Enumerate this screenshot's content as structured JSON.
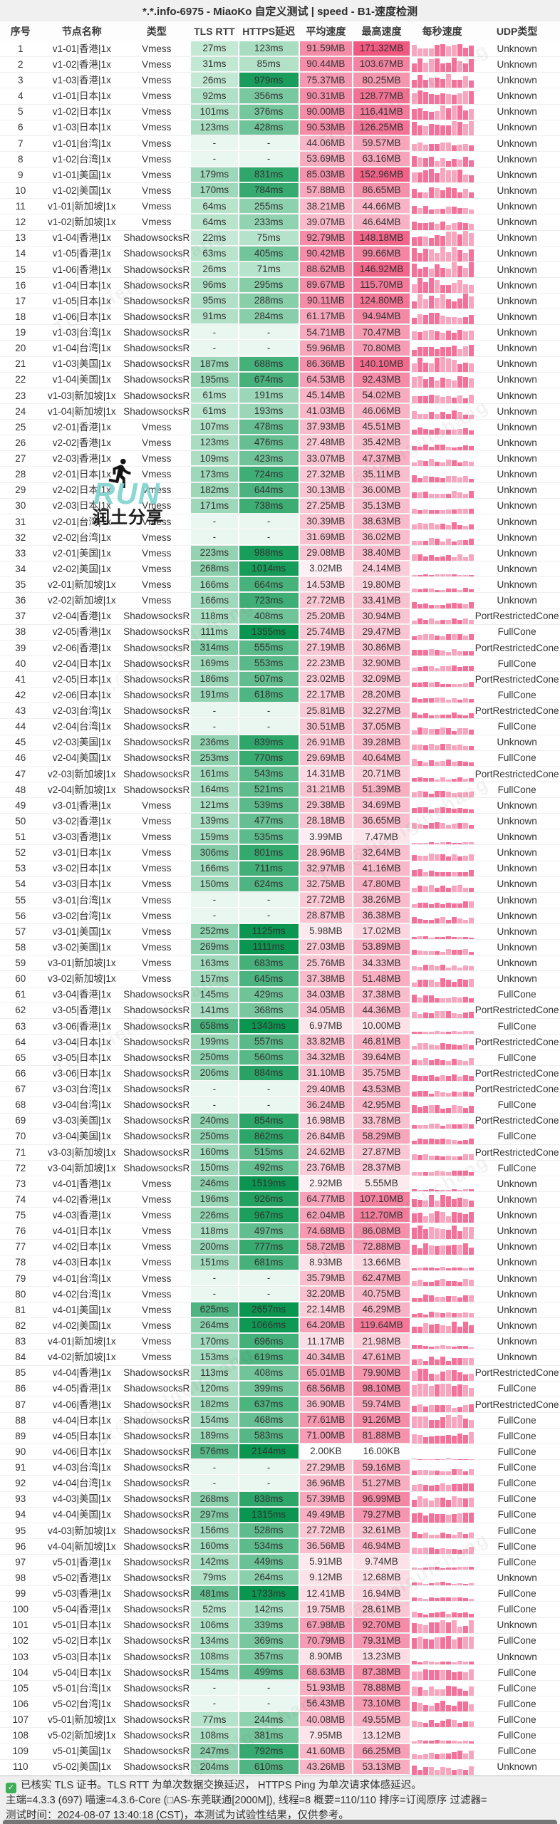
{
  "title": "*.*.info-6975 - MiaoKo 自定义测试 | speed - B1-速度检测",
  "columns": [
    "序号",
    "节点名称",
    "类型",
    "TLS RTT",
    "HTTPS延迟",
    "平均速度",
    "最高速度",
    "每秒速度",
    "UDP类型"
  ],
  "rows": [
    [
      1,
      "v1-01|香港|1x",
      "Vmess",
      "27ms",
      "123ms",
      "91.59MB",
      "171.32MB",
      "Unknown"
    ],
    [
      2,
      "v1-02|香港|1x",
      "Vmess",
      "31ms",
      "85ms",
      "90.44MB",
      "103.67MB",
      "Unknown"
    ],
    [
      3,
      "v1-03|香港|1x",
      "Vmess",
      "26ms",
      "979ms",
      "75.37MB",
      "80.25MB",
      "Unknown"
    ],
    [
      4,
      "v1-01|日本|1x",
      "Vmess",
      "92ms",
      "356ms",
      "90.31MB",
      "128.77MB",
      "Unknown"
    ],
    [
      5,
      "v1-02|日本|1x",
      "Vmess",
      "101ms",
      "376ms",
      "90.00MB",
      "116.41MB",
      "Unknown"
    ],
    [
      6,
      "v1-03|日本|1x",
      "Vmess",
      "123ms",
      "428ms",
      "90.53MB",
      "126.25MB",
      "Unknown"
    ],
    [
      7,
      "v1-01|台湾|1x",
      "Vmess",
      "-",
      "-",
      "44.06MB",
      "59.57MB",
      "Unknown"
    ],
    [
      8,
      "v1-02|台湾|1x",
      "Vmess",
      "-",
      "-",
      "53.69MB",
      "63.16MB",
      "Unknown"
    ],
    [
      9,
      "v1-01|美国|1x",
      "Vmess",
      "179ms",
      "831ms",
      "85.03MB",
      "152.96MB",
      "Unknown"
    ],
    [
      10,
      "v1-02|美国|1x",
      "Vmess",
      "170ms",
      "784ms",
      "57.88MB",
      "86.65MB",
      "Unknown"
    ],
    [
      11,
      "v1-01|新加坡|1x",
      "Vmess",
      "64ms",
      "255ms",
      "38.21MB",
      "44.66MB",
      "Unknown"
    ],
    [
      12,
      "v1-02|新加坡|1x",
      "Vmess",
      "64ms",
      "233ms",
      "39.07MB",
      "46.64MB",
      "Unknown"
    ],
    [
      13,
      "v1-04|香港|1x",
      "ShadowsocksR",
      "22ms",
      "75ms",
      "92.79MB",
      "148.18MB",
      "Unknown"
    ],
    [
      14,
      "v1-05|香港|1x",
      "ShadowsocksR",
      "63ms",
      "405ms",
      "90.42MB",
      "99.66MB",
      "Unknown"
    ],
    [
      15,
      "v1-06|香港|1x",
      "ShadowsocksR",
      "26ms",
      "71ms",
      "88.62MB",
      "146.92MB",
      "Unknown"
    ],
    [
      16,
      "v1-04|日本|1x",
      "ShadowsocksR",
      "96ms",
      "295ms",
      "89.67MB",
      "115.70MB",
      "Unknown"
    ],
    [
      17,
      "v1-05|日本|1x",
      "ShadowsocksR",
      "95ms",
      "288ms",
      "90.11MB",
      "124.80MB",
      "Unknown"
    ],
    [
      18,
      "v1-06|日本|1x",
      "ShadowsocksR",
      "91ms",
      "284ms",
      "61.17MB",
      "94.94MB",
      "Unknown"
    ],
    [
      19,
      "v1-03|台湾|1x",
      "ShadowsocksR",
      "-",
      "-",
      "54.71MB",
      "70.47MB",
      "Unknown"
    ],
    [
      20,
      "v1-04|台湾|1x",
      "ShadowsocksR",
      "-",
      "-",
      "59.96MB",
      "70.80MB",
      "Unknown"
    ],
    [
      21,
      "v1-03|美国|1x",
      "ShadowsocksR",
      "187ms",
      "688ms",
      "86.36MB",
      "140.10MB",
      "Unknown"
    ],
    [
      22,
      "v1-04|美国|1x",
      "ShadowsocksR",
      "195ms",
      "674ms",
      "64.53MB",
      "92.43MB",
      "Unknown"
    ],
    [
      23,
      "v1-03|新加坡|1x",
      "ShadowsocksR",
      "61ms",
      "191ms",
      "45.14MB",
      "54.02MB",
      "Unknown"
    ],
    [
      24,
      "v1-04|新加坡|1x",
      "ShadowsocksR",
      "61ms",
      "193ms",
      "41.03MB",
      "46.06MB",
      "Unknown"
    ],
    [
      25,
      "v2-01|香港|1x",
      "Vmess",
      "107ms",
      "478ms",
      "37.93MB",
      "45.51MB",
      "Unknown"
    ],
    [
      26,
      "v2-02|香港|1x",
      "Vmess",
      "123ms",
      "476ms",
      "27.48MB",
      "35.42MB",
      "Unknown"
    ],
    [
      27,
      "v2-03|香港|1x",
      "Vmess",
      "109ms",
      "423ms",
      "33.07MB",
      "47.37MB",
      "Unknown"
    ],
    [
      28,
      "v2-01|日本|1x",
      "Vmess",
      "173ms",
      "724ms",
      "27.32MB",
      "35.11MB",
      "Unknown"
    ],
    [
      29,
      "v2-02|日本|1x",
      "Vmess",
      "182ms",
      "644ms",
      "30.13MB",
      "36.00MB",
      "Unknown"
    ],
    [
      30,
      "v2-03|日本|1x",
      "Vmess",
      "171ms",
      "738ms",
      "27.25MB",
      "35.13MB",
      "Unknown"
    ],
    [
      31,
      "v2-01|台湾|1x",
      "Vmess",
      "-",
      "-",
      "30.39MB",
      "38.63MB",
      "Unknown"
    ],
    [
      32,
      "v2-02|台湾|1x",
      "Vmess",
      "-",
      "-",
      "31.69MB",
      "36.02MB",
      "Unknown"
    ],
    [
      33,
      "v2-01|美国|1x",
      "Vmess",
      "223ms",
      "988ms",
      "29.08MB",
      "38.40MB",
      "Unknown"
    ],
    [
      34,
      "v2-02|美国|1x",
      "Vmess",
      "268ms",
      "1014ms",
      "3.02MB",
      "24.14MB",
      "Unknown"
    ],
    [
      35,
      "v2-01|新加坡|1x",
      "Vmess",
      "166ms",
      "664ms",
      "14.53MB",
      "19.80MB",
      "Unknown"
    ],
    [
      36,
      "v2-02|新加坡|1x",
      "Vmess",
      "166ms",
      "723ms",
      "27.72MB",
      "33.41MB",
      "Unknown"
    ],
    [
      37,
      "v2-04|香港|1x",
      "ShadowsocksR",
      "118ms",
      "408ms",
      "25.20MB",
      "30.94MB",
      "PortRestrictedCone"
    ],
    [
      38,
      "v2-05|香港|1x",
      "ShadowsocksR",
      "111ms",
      "1355ms",
      "25.74MB",
      "29.47MB",
      "FullCone"
    ],
    [
      39,
      "v2-06|香港|1x",
      "ShadowsocksR",
      "314ms",
      "555ms",
      "27.19MB",
      "30.86MB",
      "PortRestrictedCone"
    ],
    [
      40,
      "v2-04|日本|1x",
      "ShadowsocksR",
      "169ms",
      "553ms",
      "22.23MB",
      "32.90MB",
      "FullCone"
    ],
    [
      41,
      "v2-05|日本|1x",
      "ShadowsocksR",
      "186ms",
      "507ms",
      "23.02MB",
      "32.09MB",
      "PortRestrictedCone"
    ],
    [
      42,
      "v2-06|日本|1x",
      "ShadowsocksR",
      "191ms",
      "618ms",
      "22.17MB",
      "28.20MB",
      "FullCone"
    ],
    [
      43,
      "v2-03|台湾|1x",
      "ShadowsocksR",
      "-",
      "-",
      "25.81MB",
      "32.27MB",
      "PortRestrictedCone"
    ],
    [
      44,
      "v2-04|台湾|1x",
      "ShadowsocksR",
      "-",
      "-",
      "30.51MB",
      "37.05MB",
      "FullCone"
    ],
    [
      45,
      "v2-03|美国|1x",
      "ShadowsocksR",
      "236ms",
      "839ms",
      "26.91MB",
      "39.28MB",
      "Unknown"
    ],
    [
      46,
      "v2-04|美国|1x",
      "ShadowsocksR",
      "253ms",
      "770ms",
      "29.69MB",
      "40.64MB",
      "FullCone"
    ],
    [
      47,
      "v2-03|新加坡|1x",
      "ShadowsocksR",
      "161ms",
      "543ms",
      "14.31MB",
      "20.71MB",
      "PortRestrictedCone"
    ],
    [
      48,
      "v2-04|新加坡|1x",
      "ShadowsocksR",
      "164ms",
      "521ms",
      "31.21MB",
      "51.39MB",
      "FullCone"
    ],
    [
      49,
      "v3-01|香港|1x",
      "Vmess",
      "121ms",
      "539ms",
      "29.38MB",
      "34.69MB",
      "Unknown"
    ],
    [
      50,
      "v3-02|香港|1x",
      "Vmess",
      "139ms",
      "477ms",
      "28.18MB",
      "36.65MB",
      "Unknown"
    ],
    [
      51,
      "v3-03|香港|1x",
      "Vmess",
      "159ms",
      "535ms",
      "3.99MB",
      "7.47MB",
      "Unknown"
    ],
    [
      52,
      "v3-01|日本|1x",
      "Vmess",
      "306ms",
      "801ms",
      "28.96MB",
      "32.64MB",
      "Unknown"
    ],
    [
      53,
      "v3-02|日本|1x",
      "Vmess",
      "166ms",
      "711ms",
      "32.97MB",
      "41.16MB",
      "Unknown"
    ],
    [
      54,
      "v3-03|日本|1x",
      "Vmess",
      "150ms",
      "624ms",
      "32.75MB",
      "47.80MB",
      "Unknown"
    ],
    [
      55,
      "v3-01|台湾|1x",
      "Vmess",
      "-",
      "-",
      "27.72MB",
      "38.26MB",
      "Unknown"
    ],
    [
      56,
      "v3-02|台湾|1x",
      "Vmess",
      "-",
      "-",
      "28.87MB",
      "36.38MB",
      "Unknown"
    ],
    [
      57,
      "v3-01|美国|1x",
      "Vmess",
      "252ms",
      "1125ms",
      "5.98MB",
      "17.02MB",
      "Unknown"
    ],
    [
      58,
      "v3-02|美国|1x",
      "Vmess",
      "269ms",
      "1111ms",
      "27.03MB",
      "53.89MB",
      "Unknown"
    ],
    [
      59,
      "v3-01|新加坡|1x",
      "Vmess",
      "163ms",
      "683ms",
      "25.76MB",
      "34.33MB",
      "Unknown"
    ],
    [
      60,
      "v3-02|新加坡|1x",
      "Vmess",
      "157ms",
      "645ms",
      "37.38MB",
      "51.48MB",
      "Unknown"
    ],
    [
      61,
      "v3-04|香港|1x",
      "ShadowsocksR",
      "145ms",
      "429ms",
      "34.03MB",
      "37.38MB",
      "FullCone"
    ],
    [
      62,
      "v3-05|香港|1x",
      "ShadowsocksR",
      "141ms",
      "368ms",
      "34.05MB",
      "44.36MB",
      "PortRestrictedCone"
    ],
    [
      63,
      "v3-06|香港|1x",
      "ShadowsocksR",
      "658ms",
      "1343ms",
      "6.97MB",
      "10.00MB",
      "FullCone"
    ],
    [
      64,
      "v3-04|日本|1x",
      "ShadowsocksR",
      "199ms",
      "557ms",
      "33.82MB",
      "46.81MB",
      "PortRestrictedCone"
    ],
    [
      65,
      "v3-05|日本|1x",
      "ShadowsocksR",
      "250ms",
      "560ms",
      "34.32MB",
      "39.64MB",
      "FullCone"
    ],
    [
      66,
      "v3-06|日本|1x",
      "ShadowsocksR",
      "206ms",
      "884ms",
      "31.10MB",
      "35.75MB",
      "PortRestrictedCone"
    ],
    [
      67,
      "v3-03|台湾|1x",
      "ShadowsocksR",
      "-",
      "-",
      "29.40MB",
      "43.53MB",
      "PortRestrictedCone"
    ],
    [
      68,
      "v3-04|台湾|1x",
      "ShadowsocksR",
      "-",
      "-",
      "36.24MB",
      "42.95MB",
      "FullCone"
    ],
    [
      69,
      "v3-03|美国|1x",
      "ShadowsocksR",
      "240ms",
      "854ms",
      "16.98MB",
      "33.78MB",
      "PortRestrictedCone"
    ],
    [
      70,
      "v3-04|美国|1x",
      "ShadowsocksR",
      "250ms",
      "862ms",
      "26.84MB",
      "58.29MB",
      "FullCone"
    ],
    [
      71,
      "v3-03|新加坡|1x",
      "ShadowsocksR",
      "160ms",
      "515ms",
      "24.62MB",
      "27.87MB",
      "PortRestrictedCone"
    ],
    [
      72,
      "v3-04|新加坡|1x",
      "ShadowsocksR",
      "150ms",
      "492ms",
      "23.76MB",
      "28.37MB",
      "FullCone"
    ],
    [
      73,
      "v4-01|香港|1x",
      "Vmess",
      "246ms",
      "1519ms",
      "2.92MB",
      "5.55MB",
      "Unknown"
    ],
    [
      74,
      "v4-02|香港|1x",
      "Vmess",
      "196ms",
      "926ms",
      "64.77MB",
      "107.10MB",
      "Unknown"
    ],
    [
      75,
      "v4-03|香港|1x",
      "Vmess",
      "226ms",
      "967ms",
      "62.04MB",
      "112.70MB",
      "Unknown"
    ],
    [
      76,
      "v4-01|日本|1x",
      "Vmess",
      "118ms",
      "497ms",
      "74.68MB",
      "86.08MB",
      "Unknown"
    ],
    [
      77,
      "v4-02|日本|1x",
      "Vmess",
      "200ms",
      "777ms",
      "58.72MB",
      "72.88MB",
      "Unknown"
    ],
    [
      78,
      "v4-03|日本|1x",
      "Vmess",
      "151ms",
      "681ms",
      "8.93MB",
      "13.66MB",
      "Unknown"
    ],
    [
      79,
      "v4-01|台湾|1x",
      "Vmess",
      "-",
      "-",
      "35.79MB",
      "62.47MB",
      "Unknown"
    ],
    [
      80,
      "v4-02|台湾|1x",
      "Vmess",
      "-",
      "-",
      "32.20MB",
      "40.75MB",
      "Unknown"
    ],
    [
      81,
      "v4-01|美国|1x",
      "Vmess",
      "625ms",
      "2657ms",
      "22.14MB",
      "46.29MB",
      "Unknown"
    ],
    [
      82,
      "v4-02|美国|1x",
      "Vmess",
      "264ms",
      "1066ms",
      "64.20MB",
      "119.64MB",
      "Unknown"
    ],
    [
      83,
      "v4-01|新加坡|1x",
      "Vmess",
      "170ms",
      "696ms",
      "11.17MB",
      "21.98MB",
      "Unknown"
    ],
    [
      84,
      "v4-02|新加坡|1x",
      "Vmess",
      "153ms",
      "619ms",
      "40.34MB",
      "47.61MB",
      "Unknown"
    ],
    [
      85,
      "v4-04|香港|1x",
      "ShadowsocksR",
      "113ms",
      "408ms",
      "65.01MB",
      "79.90MB",
      "PortRestrictedCone"
    ],
    [
      86,
      "v4-05|香港|1x",
      "ShadowsocksR",
      "120ms",
      "399ms",
      "68.56MB",
      "98.10MB",
      "FullCone"
    ],
    [
      87,
      "v4-06|香港|1x",
      "ShadowsocksR",
      "182ms",
      "637ms",
      "36.90MB",
      "59.74MB",
      "PortRestrictedCone"
    ],
    [
      88,
      "v4-04|日本|1x",
      "ShadowsocksR",
      "154ms",
      "468ms",
      "77.61MB",
      "91.26MB",
      "FullCone"
    ],
    [
      89,
      "v4-05|日本|1x",
      "ShadowsocksR",
      "189ms",
      "583ms",
      "71.00MB",
      "81.88MB",
      "FullCone"
    ],
    [
      90,
      "v4-06|日本|1x",
      "ShadowsocksR",
      "576ms",
      "2144ms",
      "2.00KB",
      "16.00KB",
      "FullCone"
    ],
    [
      91,
      "v4-03|台湾|1x",
      "ShadowsocksR",
      "-",
      "-",
      "27.29MB",
      "59.16MB",
      "FullCone"
    ],
    [
      92,
      "v4-04|台湾|1x",
      "ShadowsocksR",
      "-",
      "-",
      "36.96MB",
      "51.27MB",
      "FullCone"
    ],
    [
      93,
      "v4-03|美国|1x",
      "ShadowsocksR",
      "268ms",
      "838ms",
      "57.39MB",
      "96.99MB",
      "FullCone"
    ],
    [
      94,
      "v4-04|美国|1x",
      "ShadowsocksR",
      "297ms",
      "1315ms",
      "49.49MB",
      "79.27MB",
      "FullCone"
    ],
    [
      95,
      "v4-03|新加坡|1x",
      "ShadowsocksR",
      "156ms",
      "528ms",
      "27.72MB",
      "32.61MB",
      "FullCone"
    ],
    [
      96,
      "v4-04|新加坡|1x",
      "ShadowsocksR",
      "160ms",
      "534ms",
      "36.56MB",
      "46.94MB",
      "FullCone"
    ],
    [
      97,
      "v5-01|香港|1x",
      "ShadowsocksR",
      "142ms",
      "449ms",
      "5.91MB",
      "9.74MB",
      "FullCone"
    ],
    [
      98,
      "v5-02|香港|1x",
      "ShadowsocksR",
      "79ms",
      "264ms",
      "9.12MB",
      "12.68MB",
      "Unknown"
    ],
    [
      99,
      "v5-03|香港|1x",
      "ShadowsocksR",
      "481ms",
      "1733ms",
      "12.41MB",
      "16.94MB",
      "FullCone"
    ],
    [
      100,
      "v5-04|香港|1x",
      "ShadowsocksR",
      "52ms",
      "142ms",
      "19.75MB",
      "28.61MB",
      "FullCone"
    ],
    [
      101,
      "v5-01|日本|1x",
      "ShadowsocksR",
      "106ms",
      "339ms",
      "67.98MB",
      "92.70MB",
      "Unknown"
    ],
    [
      102,
      "v5-02|日本|1x",
      "ShadowsocksR",
      "134ms",
      "369ms",
      "70.79MB",
      "79.31MB",
      "FullCone"
    ],
    [
      103,
      "v5-03|日本|1x",
      "ShadowsocksR",
      "108ms",
      "357ms",
      "8.90MB",
      "13.23MB",
      "Unknown"
    ],
    [
      104,
      "v5-04|日本|1x",
      "ShadowsocksR",
      "154ms",
      "499ms",
      "68.63MB",
      "87.38MB",
      "FullCone"
    ],
    [
      105,
      "v5-01|台湾|1x",
      "ShadowsocksR",
      "-",
      "-",
      "51.93MB",
      "78.88MB",
      "FullCone"
    ],
    [
      106,
      "v5-02|台湾|1x",
      "ShadowsocksR",
      "-",
      "-",
      "56.43MB",
      "73.10MB",
      "FullCone"
    ],
    [
      107,
      "v5-01|新加坡|1x",
      "ShadowsocksR",
      "77ms",
      "244ms",
      "40.08MB",
      "49.55MB",
      "FullCone"
    ],
    [
      108,
      "v5-02|新加坡|1x",
      "ShadowsocksR",
      "108ms",
      "381ms",
      "7.95MB",
      "13.12MB",
      "FullCone"
    ],
    [
      109,
      "v5-01|美国|1x",
      "ShadowsocksR",
      "247ms",
      "792ms",
      "41.60MB",
      "66.25MB",
      "FullCone"
    ],
    [
      110,
      "v5-02|美国|1x",
      "ShadowsocksR",
      "204ms",
      "610ms",
      "43.26MB",
      "53.13MB",
      "Unknown"
    ]
  ],
  "footer": {
    "check_glyph": "✓",
    "line1": "已核实 TLS 证书。TLS RTT 为单次数据交换延迟， HTTPS Ping 为单次请求体感延迟。",
    "line2": "主端=4.3.3 (697) 喵速=4.3.6-Core (□AS-东莞联通[2000M]), 线程=8 概要=110/110 排序=订阅原序 过滤器=",
    "line3": "测试时间：2024-08-07 13:40:18 (CST)，本测试为试验性结果，仅供参考。"
  },
  "watermark": {
    "run_text": "RUN",
    "share_text": "润土分享",
    "diagonal_text": "TG:@jieniguichang"
  },
  "colors": {
    "latency_light": "#cfeedd",
    "latency_dark": "#0a9650",
    "latency_empty": "#eaf7f0",
    "speed_strong": "#f05880",
    "bar_pink": "#f2729a",
    "bar_pink_light": "#f7a6bf",
    "check_green": "#3fae58"
  }
}
